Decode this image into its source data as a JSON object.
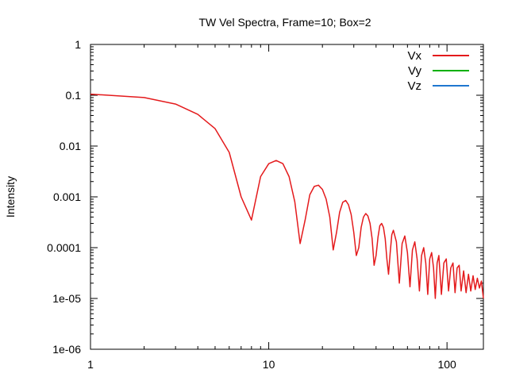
{
  "chart_data": {
    "type": "line",
    "title": "TW Vel Spectra, Frame=10; Box=2",
    "xlabel": "",
    "ylabel": "Intensity",
    "xscale": "log",
    "yscale": "log",
    "xlim": [
      1,
      160
    ],
    "ylim": [
      1e-06,
      1
    ],
    "xticks": [
      1,
      10,
      100
    ],
    "xtick_labels": [
      "1",
      "10",
      "100"
    ],
    "yticks": [
      1,
      0.1,
      0.01,
      0.001,
      0.0001,
      1e-05,
      1e-06
    ],
    "ytick_labels": [
      "1",
      "0.1",
      "0.01",
      "0.001",
      "0.0001",
      "1e-05",
      "1e-06"
    ],
    "grid": false,
    "legend_position": "top-right",
    "series": [
      {
        "name": "Vx",
        "color": "#e41a1c",
        "x": [
          1,
          2,
          3,
          4,
          5,
          6,
          7,
          8,
          9,
          10,
          11,
          12,
          13,
          14,
          15,
          16,
          17,
          18,
          19,
          20,
          21,
          22,
          23,
          24,
          25,
          26,
          27,
          28,
          29,
          30,
          31,
          32,
          33,
          34,
          35,
          36,
          37,
          38,
          39,
          40,
          41,
          42,
          43,
          44,
          45,
          46,
          47,
          48,
          49,
          50,
          52,
          54,
          56,
          58,
          60,
          62,
          64,
          66,
          68,
          70,
          72,
          74,
          76,
          78,
          80,
          82,
          84,
          86,
          88,
          90,
          93,
          96,
          99,
          102,
          105,
          108,
          111,
          114,
          117,
          120,
          124,
          128,
          132,
          136,
          140,
          144,
          148,
          152,
          156,
          160
        ],
        "y": [
          0.105,
          0.09,
          0.067,
          0.042,
          0.022,
          0.0075,
          0.001,
          0.00035,
          0.0025,
          0.0045,
          0.0052,
          0.0045,
          0.0025,
          0.0008,
          0.00012,
          0.00035,
          0.0011,
          0.0016,
          0.0017,
          0.0014,
          0.0009,
          0.0004,
          9e-05,
          0.0002,
          0.0005,
          0.00078,
          0.00085,
          0.0007,
          0.00045,
          0.0002,
          7e-05,
          0.0001,
          0.00025,
          0.0004,
          0.00047,
          0.00042,
          0.0003,
          0.00015,
          4.5e-05,
          7e-05,
          0.00016,
          0.00027,
          0.0003,
          0.00025,
          0.00015,
          6e-05,
          3e-05,
          8e-05,
          0.00018,
          0.00022,
          0.00013,
          2e-05,
          0.00012,
          0.00017,
          8e-05,
          1.7e-05,
          9e-05,
          0.00013,
          6e-05,
          1.4e-05,
          7e-05,
          0.0001,
          5e-05,
          1.2e-05,
          6e-05,
          8e-05,
          4e-05,
          1e-05,
          5e-05,
          7e-05,
          1.2e-05,
          5e-05,
          6e-05,
          1.4e-05,
          4e-05,
          5e-05,
          1.3e-05,
          4e-05,
          4.5e-05,
          1.4e-05,
          3.5e-05,
          1.3e-05,
          3e-05,
          1.4e-05,
          2.8e-05,
          1.5e-05,
          2.5e-05,
          1.6e-05,
          2.2e-05,
          1e-05
        ]
      },
      {
        "name": "Vy",
        "color": "#00b000",
        "x": [],
        "y": []
      },
      {
        "name": "Vz",
        "color": "#1f77d0",
        "x": [],
        "y": []
      }
    ]
  }
}
